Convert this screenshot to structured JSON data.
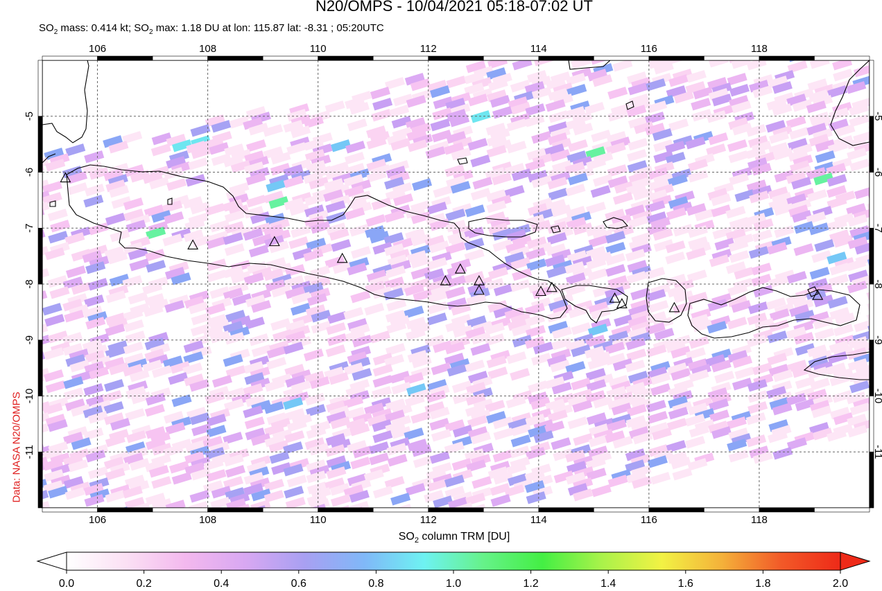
{
  "title": "N20/OMPS - 10/04/2021 05:18-07:02 UT",
  "subtitle": {
    "so2_mass_label": "SO",
    "so2_mass_value": " mass: 0.414 kt; SO",
    "so2_max_value": " max: 1.18 DU at lon: 115.87 lat: -8.31 ; 05:20UTC"
  },
  "credit": "Data: NASA N20/OMPS",
  "map": {
    "lon_range": [
      105,
      120
    ],
    "lat_range": [
      -12,
      -4
    ],
    "lon_ticks": [
      "106",
      "108",
      "110",
      "112",
      "114",
      "116",
      "118"
    ],
    "lat_ticks": [
      "-5",
      "-6",
      "-7",
      "-8",
      "-9",
      "-10",
      "-11"
    ],
    "grid": "dashed",
    "colors": {
      "coastline": "#000000",
      "grid": "#666666"
    }
  },
  "volcanoes": [
    {
      "lon": 105.42,
      "lat": -6.1
    },
    {
      "lon": 107.73,
      "lat": -7.3
    },
    {
      "lon": 109.21,
      "lat": -7.24
    },
    {
      "lon": 110.44,
      "lat": -7.54
    },
    {
      "lon": 112.31,
      "lat": -7.94
    },
    {
      "lon": 112.58,
      "lat": -7.73
    },
    {
      "lon": 112.92,
      "lat": -7.94
    },
    {
      "lon": 112.92,
      "lat": -8.11
    },
    {
      "lon": 114.04,
      "lat": -8.13
    },
    {
      "lon": 114.24,
      "lat": -8.06
    },
    {
      "lon": 115.38,
      "lat": -8.25
    },
    {
      "lon": 115.51,
      "lat": -8.35
    },
    {
      "lon": 116.46,
      "lat": -8.42
    },
    {
      "lon": 119.06,
      "lat": -8.2
    }
  ],
  "colorbar": {
    "title_prefix": "SO",
    "title_suffix": " column TRM [DU]",
    "min": 0.0,
    "max": 2.0,
    "tick_labels": [
      "0.0",
      "0.2",
      "0.4",
      "0.6",
      "0.8",
      "1.0",
      "1.2",
      "1.4",
      "1.6",
      "1.8",
      "2.0"
    ],
    "colors": [
      "#ffffff",
      "#fbe0f4",
      "#f3b8ee",
      "#d8a8f2",
      "#a8a0f2",
      "#80b8f8",
      "#6ef2f2",
      "#66f28a",
      "#44ef44",
      "#aaf24a",
      "#f2f244",
      "#f4b23a",
      "#f25a28",
      "#ee2a18"
    ]
  }
}
